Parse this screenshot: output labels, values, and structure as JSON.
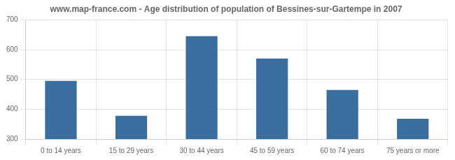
{
  "chart_data": {
    "type": "bar",
    "title": "www.map-france.com - Age distribution of population of Bessines-sur-Gartempe in 2007",
    "categories": [
      "0 to 14 years",
      "15 to 29 years",
      "30 to 44 years",
      "45 to 59 years",
      "60 to 74 years",
      "75 years or more"
    ],
    "values": [
      495,
      378,
      645,
      570,
      465,
      368
    ],
    "color": "#3a6e9e",
    "ylim": [
      300,
      700
    ],
    "yticks": [
      300,
      400,
      500,
      600,
      700
    ],
    "grid": true
  }
}
